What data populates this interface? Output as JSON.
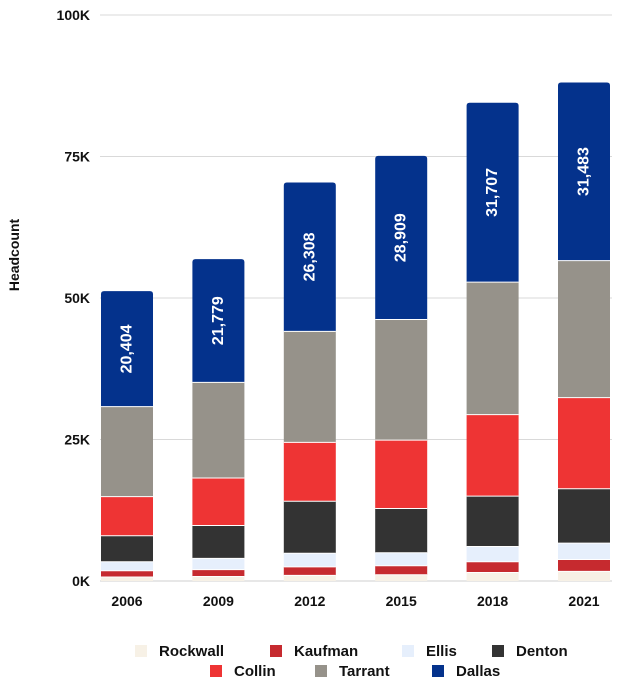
{
  "chart_data": {
    "type": "bar",
    "stacked": true,
    "title": "",
    "xlabel": "",
    "ylabel": "Headcount",
    "ylim": [
      0,
      100000
    ],
    "y_ticks": [
      {
        "value": 0,
        "label": "0K"
      },
      {
        "value": 25000,
        "label": "25K"
      },
      {
        "value": 50000,
        "label": "50K"
      },
      {
        "value": 75000,
        "label": "75K"
      },
      {
        "value": 100000,
        "label": "100K"
      }
    ],
    "grid": true,
    "categories": [
      "2006",
      "2009",
      "2012",
      "2015",
      "2018",
      "2021"
    ],
    "series": [
      {
        "name": "Rockwall",
        "color": "#f7f1e6",
        "values": [
          700,
          800,
          1000,
          1100,
          1500,
          1700
        ]
      },
      {
        "name": "Kaufman",
        "color": "#c62a2f",
        "values": [
          1100,
          1200,
          1500,
          1600,
          1900,
          2100
        ]
      },
      {
        "name": "Ellis",
        "color": "#e6effc",
        "values": [
          1600,
          2000,
          2400,
          2300,
          2700,
          2900
        ]
      },
      {
        "name": "Denton",
        "color": "#333333",
        "values": [
          4600,
          5800,
          9200,
          7800,
          8900,
          9600
        ]
      },
      {
        "name": "Collin",
        "color": "#ee3434",
        "values": [
          6900,
          8400,
          10400,
          12100,
          14400,
          16100
        ]
      },
      {
        "name": "Tarrant",
        "color": "#96928a",
        "values": [
          15900,
          16900,
          19600,
          21300,
          23400,
          24200
        ]
      },
      {
        "name": "Dallas",
        "color": "#04328c",
        "values": [
          20404,
          21779,
          26308,
          28909,
          31707,
          31483
        ]
      }
    ],
    "data_labels": {
      "series": "Dallas",
      "labels": [
        "20,404",
        "21,779",
        "26,308",
        "28,909",
        "31,707",
        "31,483"
      ]
    },
    "legend": {
      "position": "bottom",
      "rows": [
        [
          "Rockwall",
          "Kaufman",
          "Ellis",
          "Denton"
        ],
        [
          "Collin",
          "Tarrant",
          "Dallas"
        ]
      ]
    }
  }
}
